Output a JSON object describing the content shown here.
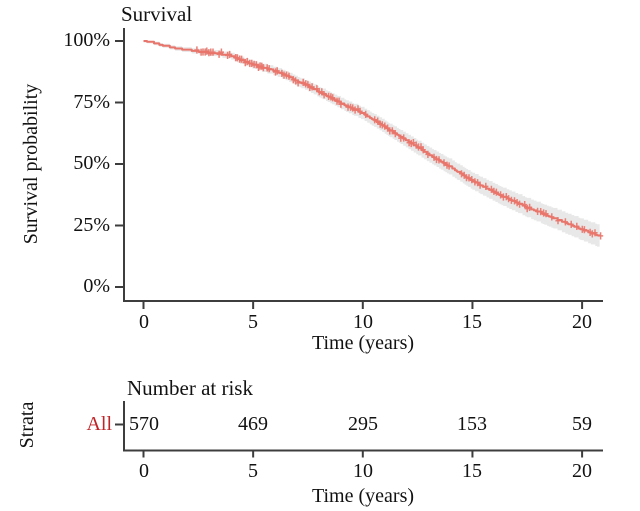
{
  "page": {
    "background": "#ffffff"
  },
  "chart_data": {
    "type": "line",
    "subtype": "kaplan_meier_survival_curve",
    "title": "Survival",
    "xlabel": "Time (years)",
    "ylabel": "Survival probability",
    "xlim": [
      0,
      21
    ],
    "ylim": [
      0,
      100
    ],
    "grid": false,
    "legend": "none",
    "confidence_interval_shown": true,
    "censor_marks_shown": true,
    "x_ticks": {
      "values": [
        0,
        5,
        10,
        15,
        20
      ],
      "labels": [
        "0",
        "5",
        "10",
        "15",
        "20"
      ]
    },
    "y_ticks": {
      "values": [
        100,
        75,
        50,
        25,
        0
      ],
      "labels": [
        "100%",
        "75%",
        "50%",
        "25%",
        "0%"
      ]
    },
    "series": [
      {
        "name": "All",
        "color": "#e8756b",
        "end_time_years": 20.8,
        "points_pct": [
          [
            0,
            100
          ],
          [
            0.4,
            99.2
          ],
          [
            0.9,
            98.0
          ],
          [
            1.4,
            97.0
          ],
          [
            2.0,
            96.2
          ],
          [
            2.5,
            95.6
          ],
          [
            3.0,
            95.0
          ],
          [
            3.6,
            94.4
          ],
          [
            4.0,
            93.8
          ],
          [
            4.5,
            91.8
          ],
          [
            5.0,
            90.2
          ],
          [
            5.5,
            88.8
          ],
          [
            6.0,
            87.6
          ],
          [
            6.5,
            85.8
          ],
          [
            7.0,
            83.6
          ],
          [
            7.5,
            81.6
          ],
          [
            8.0,
            79.2
          ],
          [
            8.5,
            77.0
          ],
          [
            9.0,
            74.6
          ],
          [
            9.5,
            72.4
          ],
          [
            10.0,
            70.4
          ],
          [
            10.5,
            67.8
          ],
          [
            11.0,
            65.0
          ],
          [
            11.5,
            62.2
          ],
          [
            12.0,
            59.4
          ],
          [
            12.5,
            56.6
          ],
          [
            13.0,
            53.8
          ],
          [
            13.5,
            51.2
          ],
          [
            14.0,
            48.6
          ],
          [
            14.5,
            45.8
          ],
          [
            15.0,
            43.0
          ],
          [
            15.5,
            40.6
          ],
          [
            16.0,
            38.4
          ],
          [
            16.5,
            36.2
          ],
          [
            17.0,
            34.2
          ],
          [
            17.5,
            32.2
          ],
          [
            18.0,
            30.4
          ],
          [
            18.5,
            28.6
          ],
          [
            19.0,
            26.8
          ],
          [
            19.5,
            25.0
          ],
          [
            20.0,
            23.2
          ],
          [
            20.4,
            21.8
          ],
          [
            20.8,
            20.6
          ]
        ]
      }
    ],
    "risk_table": {
      "title": "Number at risk",
      "strata_label": "Strata",
      "xlabel": "Time (years)",
      "x_ticks": {
        "values": [
          0,
          5,
          10,
          15,
          20
        ],
        "labels": [
          "0",
          "5",
          "10",
          "15",
          "20"
        ]
      },
      "rows": [
        {
          "label": "All",
          "label_color": "#c02428",
          "counts": [
            "570",
            "469",
            "295",
            "153",
            "59"
          ]
        }
      ]
    },
    "colors": {
      "curve": "#e8756b",
      "ci_band": "rgba(150,150,150,0.22)",
      "axis": "#3d3d3d",
      "text": "#121212",
      "strata": "#c02428"
    }
  }
}
